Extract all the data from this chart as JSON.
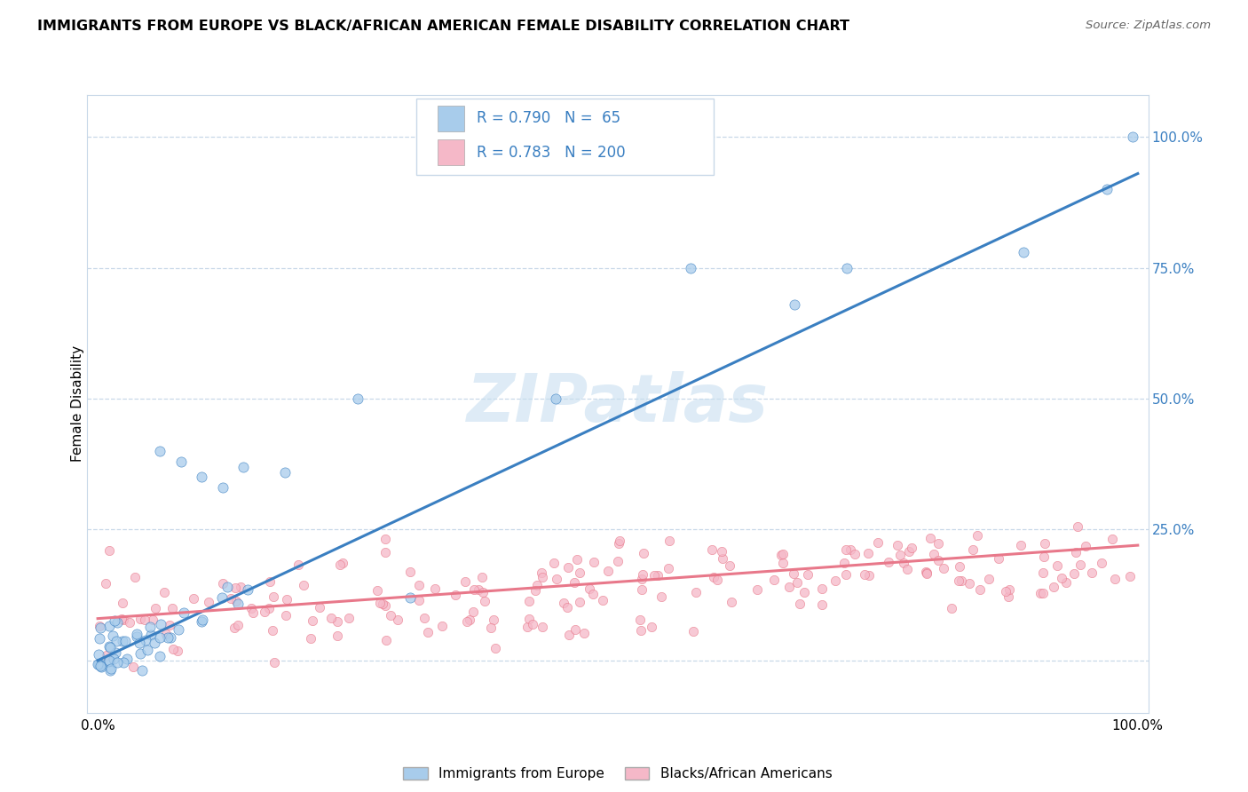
{
  "title": "IMMIGRANTS FROM EUROPE VS BLACK/AFRICAN AMERICAN FEMALE DISABILITY CORRELATION CHART",
  "source": "Source: ZipAtlas.com",
  "ylabel": "Female Disability",
  "blue_color": "#a8cceb",
  "pink_color": "#f5b8c8",
  "blue_line_color": "#3a7fc1",
  "pink_line_color": "#e8788a",
  "R_blue": 0.79,
  "N_blue": 65,
  "R_pink": 0.783,
  "N_pink": 200,
  "legend_labels": [
    "Immigrants from Europe",
    "Blacks/African Americans"
  ],
  "watermark": "ZIPatlas"
}
